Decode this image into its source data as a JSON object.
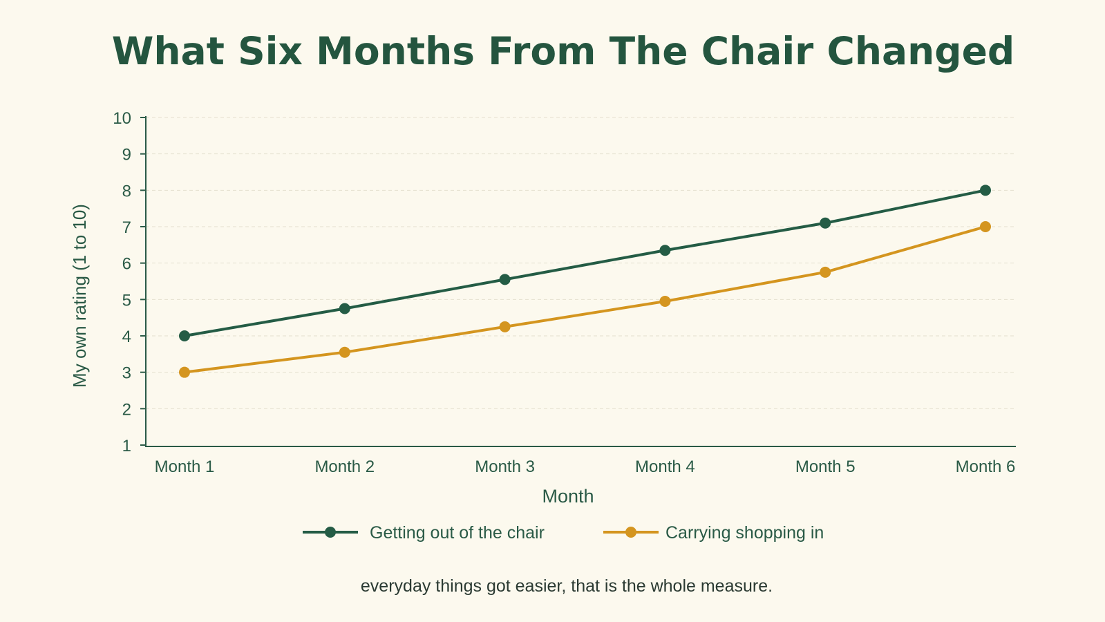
{
  "colors": {
    "background": "#fcf9ee",
    "title": "#24553f",
    "axis": "#2a5a46",
    "grid": "#e4e0cf",
    "series_1": "#245c45",
    "series_2": "#d4951f",
    "footer": "#2b3a32"
  },
  "footer": "everyday things got easier, that is the whole measure.",
  "chart_data": {
    "type": "line",
    "title": "What Six Months From The Chair Changed",
    "xlabel": "Month",
    "ylabel": "My own rating (1 to 10)",
    "categories": [
      "Month 1",
      "Month 2",
      "Month 3",
      "Month 4",
      "Month 5",
      "Month 6"
    ],
    "ylim": [
      1,
      10
    ],
    "yticks": [
      1,
      2,
      3,
      4,
      5,
      6,
      7,
      8,
      9,
      10
    ],
    "grid": true,
    "legend_position": "bottom",
    "series": [
      {
        "name": "Getting out of the chair",
        "values": [
          4.0,
          4.75,
          5.55,
          6.35,
          7.1,
          8.0
        ]
      },
      {
        "name": "Carrying shopping in",
        "values": [
          3.0,
          3.55,
          4.25,
          4.95,
          5.75,
          7.0
        ]
      }
    ]
  }
}
